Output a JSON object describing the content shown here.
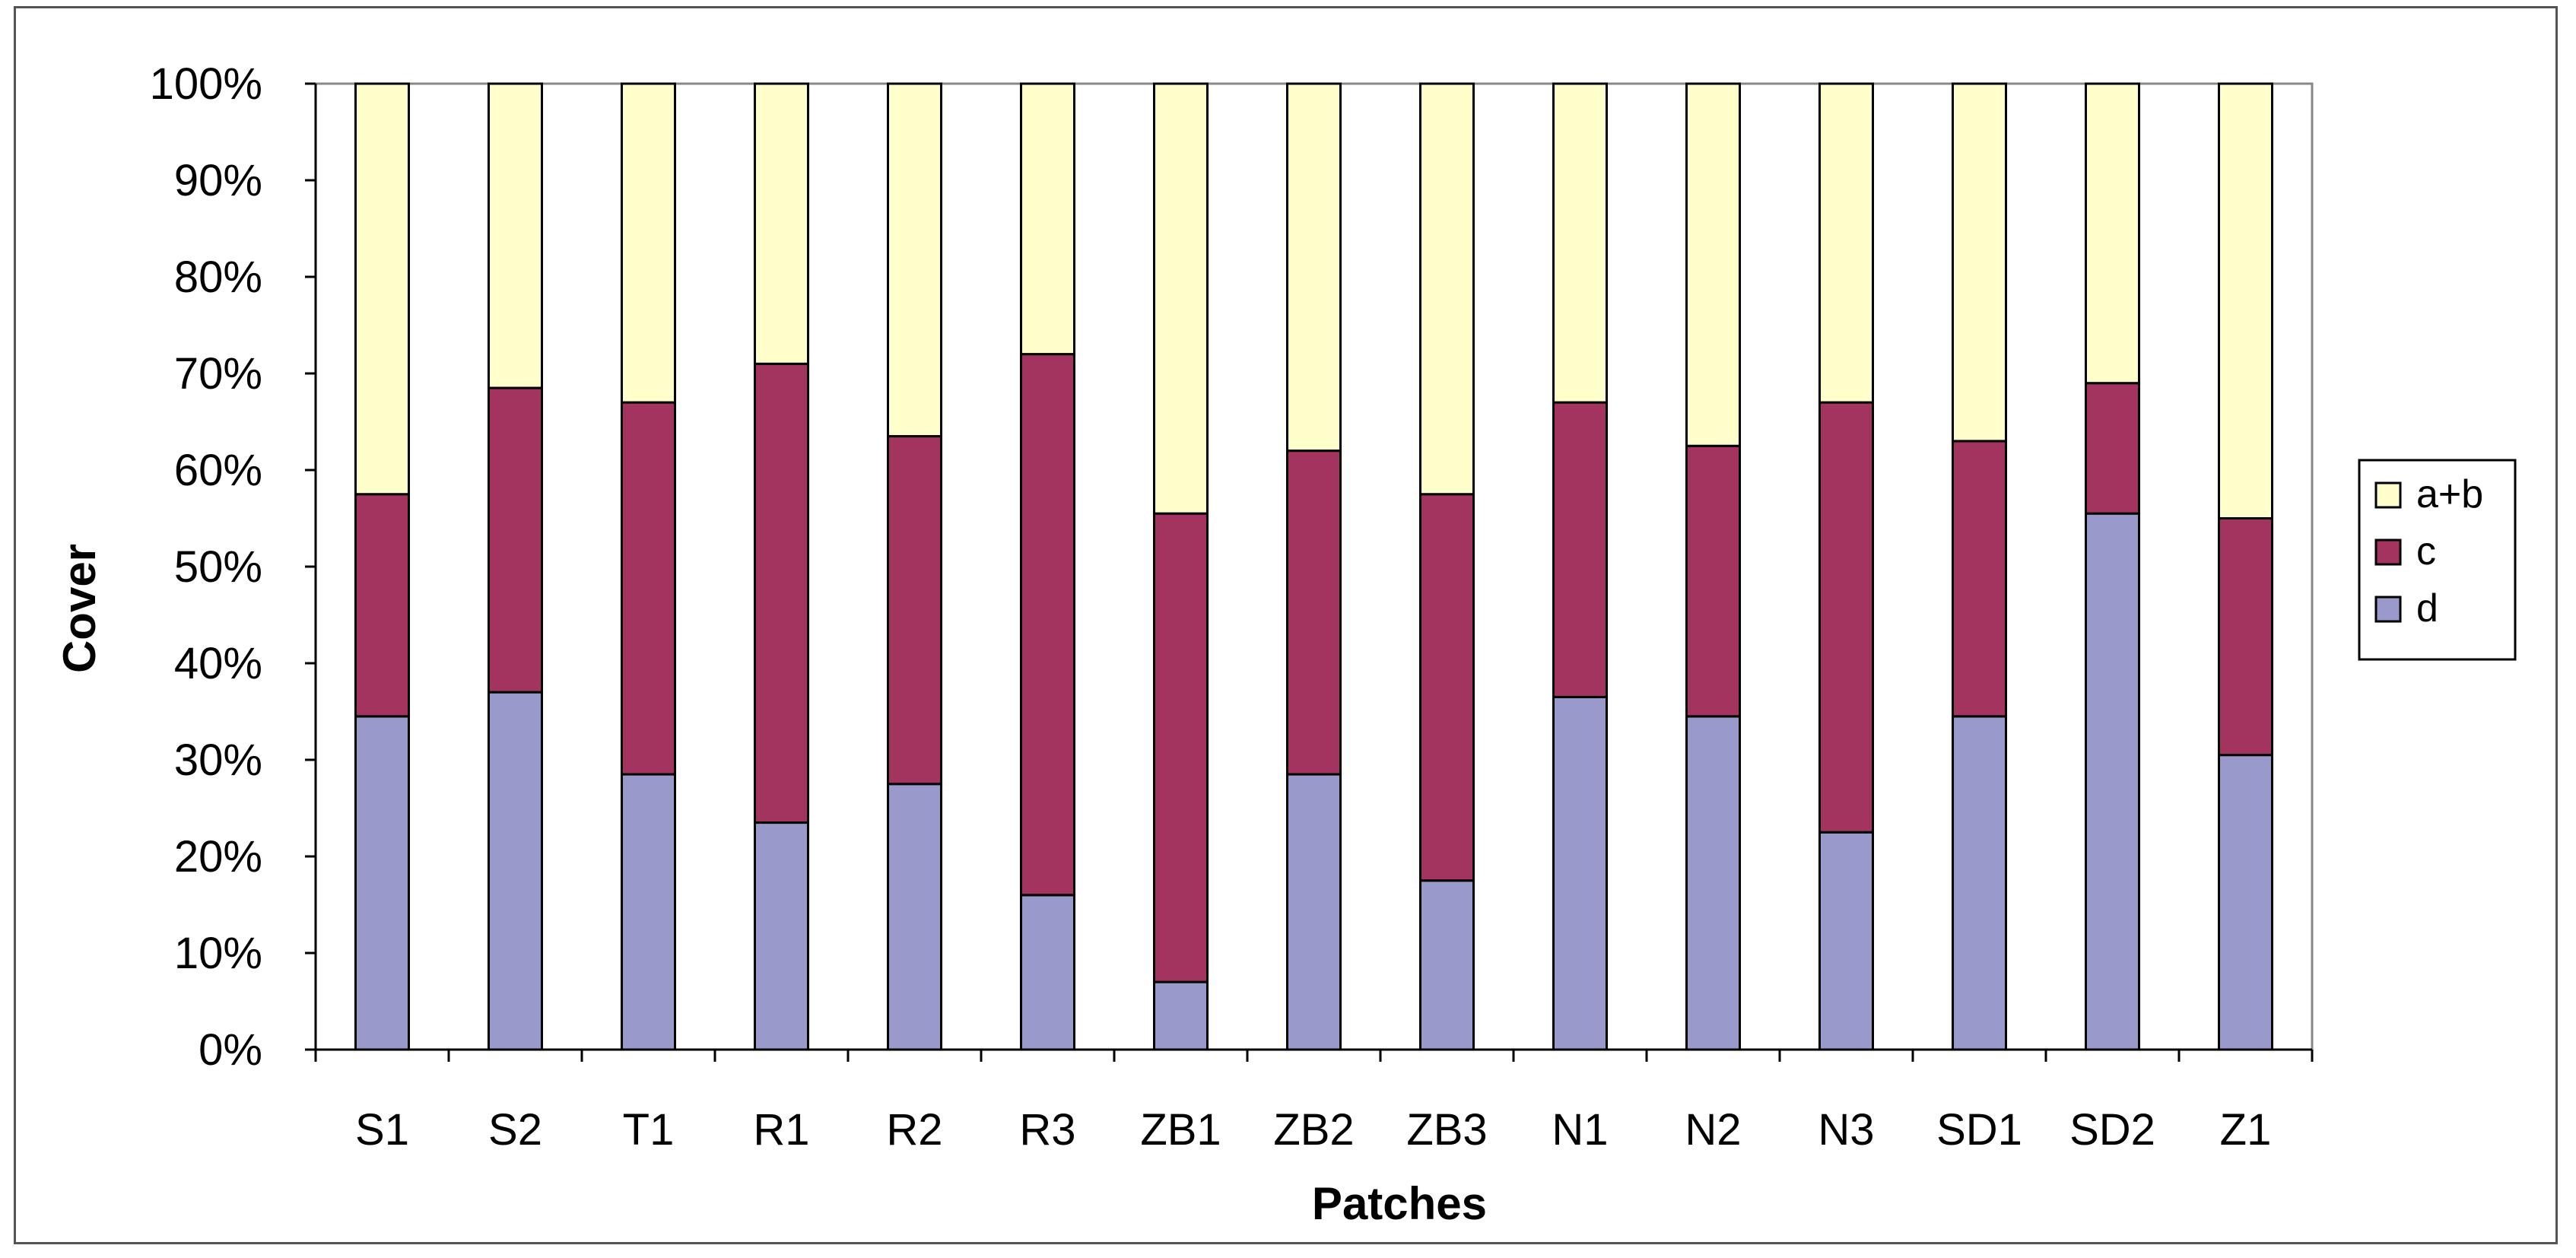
{
  "chart_data": {
    "type": "bar",
    "stacked": true,
    "percent_stacked": true,
    "title": "",
    "xlabel": "Patches",
    "ylabel": "Cover",
    "ylim": [
      0,
      100
    ],
    "yticks": [
      "0%",
      "10%",
      "20%",
      "30%",
      "40%",
      "50%",
      "60%",
      "70%",
      "80%",
      "90%",
      "100%"
    ],
    "categories": [
      "S1",
      "S2",
      "T1",
      "R1",
      "R2",
      "R3",
      "ZB1",
      "ZB2",
      "ZB3",
      "N1",
      "N2",
      "N3",
      "SD1",
      "SD2",
      "Z1"
    ],
    "series": [
      {
        "name": "d",
        "color": "#9999cc",
        "values": [
          34.5,
          37,
          28.5,
          23.5,
          27.5,
          16,
          7,
          28.5,
          17.5,
          36.5,
          34.5,
          22.5,
          34.5,
          55.5,
          30.5
        ]
      },
      {
        "name": "c",
        "color": "#a33460",
        "values": [
          23,
          31.5,
          38.5,
          47.5,
          36,
          56,
          48.5,
          33.5,
          40,
          30.5,
          28,
          44.5,
          28.5,
          13.5,
          24.5
        ]
      },
      {
        "name": "a+b",
        "color": "#ffffcc",
        "values": [
          42.5,
          31.5,
          33,
          29,
          36.5,
          28,
          44.5,
          38,
          42.5,
          33,
          37.5,
          33,
          37,
          31,
          45
        ]
      }
    ],
    "legend": {
      "position": "right",
      "order": [
        "a+b",
        "c",
        "d"
      ]
    },
    "grid": false
  }
}
